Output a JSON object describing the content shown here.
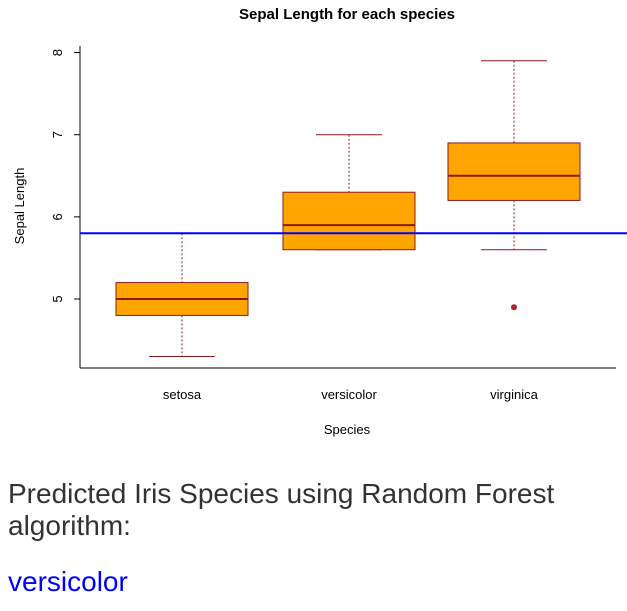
{
  "chart_data": {
    "type": "box",
    "title": "Sepal Length for each species",
    "xlabel": "Species",
    "ylabel": "Sepal Length",
    "categories": [
      "setosa",
      "versicolor",
      "virginica"
    ],
    "boxes": [
      {
        "name": "setosa",
        "min": 4.3,
        "q1": 4.8,
        "median": 5.0,
        "q3": 5.2,
        "max": 5.8,
        "outliers": []
      },
      {
        "name": "versicolor",
        "min": 5.6,
        "q1": 5.6,
        "median": 5.9,
        "q3": 6.3,
        "max": 7.0,
        "outliers": []
      },
      {
        "name": "virginica",
        "min": 5.6,
        "q1": 6.2,
        "median": 6.5,
        "q3": 6.9,
        "max": 7.9,
        "outliers": [
          4.9
        ]
      }
    ],
    "reference_line": {
      "y": 5.8,
      "color": "#0000ff"
    },
    "yticks": [
      5,
      6,
      7,
      8
    ],
    "ylim": [
      4.16,
      8.08
    ],
    "colors": {
      "box_fill": "#ffa500",
      "box_border": "#8b1a1a",
      "whisker": "#8b1a1a",
      "outlier": "#a52a2a"
    },
    "grid": false,
    "legend": "none"
  },
  "result": {
    "heading": "Predicted Iris Species using Random Forest algorithm:",
    "prediction": "versicolor",
    "prediction_color": "#0000ff"
  }
}
